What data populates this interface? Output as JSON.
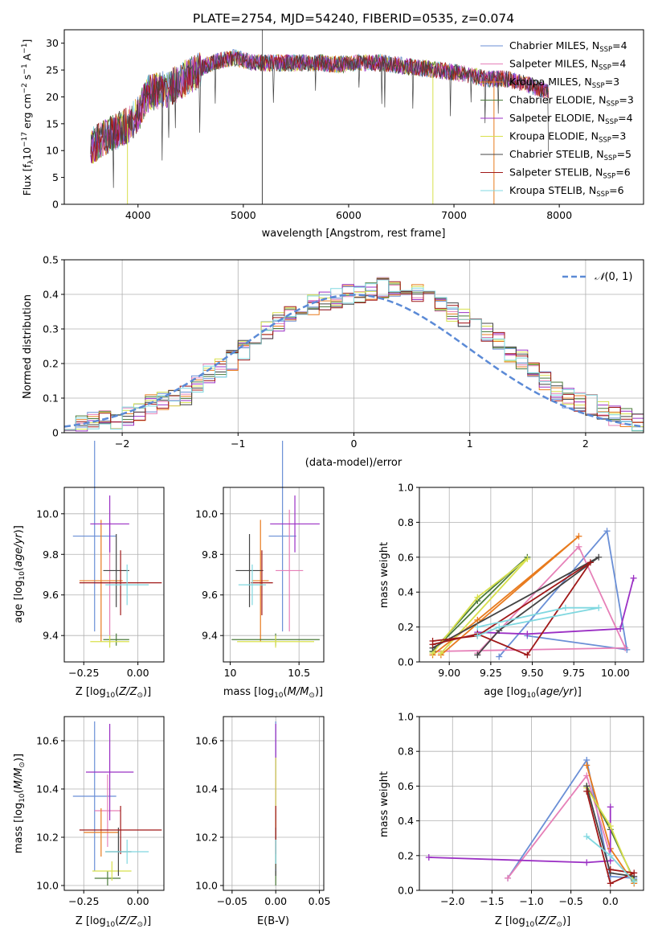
{
  "chart_data": [
    {
      "id": "spectrum",
      "type": "line",
      "title": "PLATE=2754, MJD=54240, FIBERID=0535, z=0.074",
      "xlabel": "wavelength [Angstrom, rest frame]",
      "ylabel": "Flux [f_λ10^-17 erg cm^-2 s^-1 A^-1]",
      "xlim": [
        3300,
        8800
      ],
      "ylim": [
        0,
        32.5
      ],
      "xticks": [
        4000,
        5000,
        6000,
        7000,
        8000
      ],
      "yticks": [
        0,
        5,
        10,
        15,
        20,
        25,
        30
      ],
      "grid": false,
      "legend_position": "top-right",
      "continuum": {
        "x": [
          3550,
          3700,
          3900,
          4000,
          4100,
          4300,
          4500,
          4700,
          4900,
          5100,
          5300,
          5500,
          5700,
          5900,
          6100,
          6300,
          6500,
          6700,
          6900,
          7100,
          7300,
          7500,
          7700,
          7900
        ],
        "y": [
          11,
          13,
          15,
          17,
          21,
          22,
          24.5,
          26.5,
          27.5,
          26.5,
          26.5,
          26.5,
          26.5,
          26.2,
          26.5,
          26.5,
          26,
          25.5,
          25,
          24.5,
          23.5,
          23.5,
          22.5,
          21
        ]
      },
      "series": [
        {
          "name": "Chabrier MILES, N_SSP=4",
          "color": "#6a8fd6"
        },
        {
          "name": "Salpeter MILES, N_SSP=4",
          "color": "#e680b8"
        },
        {
          "name": "Kroupa MILES, N_SSP=3",
          "color": "#e87b1e"
        },
        {
          "name": "Chabrier ELODIE, N_SSP=3",
          "color": "#4a7a3a"
        },
        {
          "name": "Salpeter ELODIE, N_SSP=4",
          "color": "#9b30c4"
        },
        {
          "name": "Kroupa ELODIE, N_SSP=3",
          "color": "#d8e04c"
        },
        {
          "name": "Chabrier STELIB, N_SSP=5",
          "color": "#444444"
        },
        {
          "name": "Salpeter STELIB, N_SSP=6",
          "color": "#a01818"
        },
        {
          "name": "Kroupa STELIB, N_SSP=6",
          "color": "#80d8e0"
        }
      ]
    },
    {
      "id": "residuals",
      "type": "line",
      "xlabel": "(data-model)/error",
      "ylabel": "Normed distribution",
      "xlim": [
        -2.5,
        2.5
      ],
      "ylim": [
        0,
        0.5
      ],
      "xticks": [
        -2,
        -1,
        0,
        1,
        2
      ],
      "yticks": [
        0.0,
        0.1,
        0.2,
        0.3,
        0.4,
        0.5
      ],
      "grid": true,
      "legend_position": "top-right",
      "legend": "N(0,1)",
      "gaussian_color": "#5b8ad6",
      "bin_width": 0.1,
      "hist_base": [
        0.02,
        0.02,
        0.03,
        0.04,
        0.04,
        0.05,
        0.06,
        0.08,
        0.09,
        0.1,
        0.11,
        0.14,
        0.17,
        0.19,
        0.21,
        0.24,
        0.28,
        0.3,
        0.32,
        0.34,
        0.36,
        0.37,
        0.38,
        0.39,
        0.4,
        0.4,
        0.41,
        0.42,
        0.41,
        0.4,
        0.4,
        0.39,
        0.37,
        0.35,
        0.33,
        0.31,
        0.29,
        0.26,
        0.23,
        0.21,
        0.18,
        0.15,
        0.12,
        0.1,
        0.09,
        0.08,
        0.06,
        0.05,
        0.04,
        0.03
      ]
    },
    {
      "id": "age-vs-Z",
      "type": "scatter",
      "xlabel": "Z [log10(Z/Z⊙)]",
      "ylabel": "age [log10(age/yr)]",
      "xlim": [
        -0.34,
        0.12
      ],
      "ylim": [
        9.27,
        10.13
      ],
      "xticks": [
        -0.25,
        0.0
      ],
      "xtick_labels": [
        "−0.25",
        "0.00"
      ],
      "yticks": [
        9.4,
        9.6,
        9.8,
        10.0
      ],
      "yticks_fmt": 1,
      "grid": true,
      "points": [
        {
          "x": -0.2,
          "y": 9.89,
          "xe": 0.1,
          "ye": 0.47,
          "color": "#6a8fd6"
        },
        {
          "x": -0.13,
          "y": 9.66,
          "xe": 0.07,
          "ye": 0.3,
          "color": "#e680b8"
        },
        {
          "x": -0.17,
          "y": 9.67,
          "xe": 0.1,
          "ye": 0.3,
          "color": "#e87b1e"
        },
        {
          "x": -0.1,
          "y": 9.38,
          "xe": 0.06,
          "ye": 0.03,
          "color": "#4a7a3a"
        },
        {
          "x": -0.13,
          "y": 9.95,
          "xe": 0.09,
          "ye": 0.14,
          "color": "#9b30c4"
        },
        {
          "x": -0.13,
          "y": 9.37,
          "xe": 0.09,
          "ye": 0.03,
          "color": "#d8e04c"
        },
        {
          "x": -0.1,
          "y": 9.72,
          "xe": 0.06,
          "ye": 0.18,
          "color": "#444444"
        },
        {
          "x": -0.08,
          "y": 9.66,
          "xe": 0.19,
          "ye": 0.16,
          "color": "#a01818"
        },
        {
          "x": -0.05,
          "y": 9.65,
          "xe": 0.1,
          "ye": 0.1,
          "color": "#80d8e0"
        }
      ]
    },
    {
      "id": "age-vs-mass",
      "type": "scatter",
      "xlabel": "mass [log10(M/M⊙)]",
      "ylabel": "",
      "xlim": [
        9.95,
        10.68
      ],
      "ylim": [
        9.27,
        10.13
      ],
      "xticks": [
        10.0,
        10.5
      ],
      "yticks": [
        9.4,
        9.6,
        9.8,
        10.0
      ],
      "yticks_fmt": 1,
      "grid": true,
      "points": [
        {
          "x": 10.38,
          "y": 9.89,
          "xe": 0.1,
          "ye": 0.47,
          "color": "#6a8fd6"
        },
        {
          "x": 10.43,
          "y": 9.72,
          "xe": 0.1,
          "ye": 0.3,
          "color": "#e680b8"
        },
        {
          "x": 10.22,
          "y": 9.67,
          "xe": 0.06,
          "ye": 0.3,
          "color": "#e87b1e"
        },
        {
          "x": 10.33,
          "y": 9.38,
          "xe": 0.32,
          "ye": 0.03,
          "color": "#4a7a3a"
        },
        {
          "x": 10.47,
          "y": 9.95,
          "xe": 0.18,
          "ye": 0.14,
          "color": "#9b30c4"
        },
        {
          "x": 10.33,
          "y": 9.37,
          "xe": 0.28,
          "ye": 0.03,
          "color": "#d8e04c"
        },
        {
          "x": 10.14,
          "y": 9.72,
          "xe": 0.1,
          "ye": 0.18,
          "color": "#444444"
        },
        {
          "x": 10.23,
          "y": 9.66,
          "xe": 0.08,
          "ye": 0.16,
          "color": "#a01818"
        },
        {
          "x": 10.16,
          "y": 9.65,
          "xe": 0.1,
          "ye": 0.1,
          "color": "#80d8e0"
        }
      ]
    },
    {
      "id": "weight-vs-age",
      "type": "line",
      "xlabel": "age [log10(age/yr)]",
      "ylabel": "mass weight",
      "xlim": [
        8.82,
        10.17
      ],
      "ylim": [
        0,
        1.0
      ],
      "xticks": [
        9.0,
        9.25,
        9.5,
        9.75,
        10.0
      ],
      "xtick_labels": [
        "9.00",
        "9.25",
        "9.50",
        "9.75",
        "10.00"
      ],
      "yticks": [
        0.0,
        0.2,
        0.4,
        0.6,
        0.8,
        1.0
      ],
      "yticks_fmt": 1,
      "grid": true,
      "series": [
        {
          "color": "#6a8fd6",
          "x": [
            9.3,
            9.95,
            10.07,
            9.47
          ],
          "y": [
            0.03,
            0.75,
            0.07,
            0.15
          ]
        },
        {
          "color": "#e680b8",
          "x": [
            9.17,
            9.78,
            10.06,
            8.9
          ],
          "y": [
            0.05,
            0.66,
            0.08,
            0.06
          ]
        },
        {
          "color": "#e87b1e",
          "x": [
            8.9,
            9.17,
            9.78,
            8.95
          ],
          "y": [
            0.04,
            0.24,
            0.72,
            0.04
          ]
        },
        {
          "color": "#4a7a3a",
          "x": [
            8.9,
            9.17,
            9.47,
            8.9
          ],
          "y": [
            0.06,
            0.35,
            0.6,
            0.06
          ]
        },
        {
          "color": "#9b30c4",
          "x": [
            9.17,
            9.47,
            10.03,
            10.11
          ],
          "y": [
            0.17,
            0.16,
            0.19,
            0.48
          ]
        },
        {
          "color": "#d8e04c",
          "x": [
            8.9,
            9.17,
            9.47,
            8.95
          ],
          "y": [
            0.05,
            0.37,
            0.59,
            0.05
          ]
        },
        {
          "color": "#444444",
          "x": [
            9.17,
            9.3,
            9.9,
            8.9
          ],
          "y": [
            0.04,
            0.18,
            0.6,
            0.08
          ]
        },
        {
          "color": "#a01818",
          "x": [
            8.9,
            9.17,
            9.47,
            9.85,
            9.17,
            8.9
          ],
          "y": [
            0.1,
            0.16,
            0.04,
            0.57,
            0.15,
            0.12
          ]
        },
        {
          "color": "#80d8e0",
          "x": [
            9.17,
            9.7,
            9.9,
            9.3,
            9.17
          ],
          "y": [
            0.2,
            0.31,
            0.31,
            0.2,
            0.15
          ]
        }
      ]
    },
    {
      "id": "mass-vs-Z",
      "type": "scatter",
      "xlabel": "Z [log10(Z/Z⊙)]",
      "ylabel": "mass [log10(M/M⊙)]",
      "xlim": [
        -0.34,
        0.12
      ],
      "ylim": [
        9.98,
        10.7
      ],
      "xticks": [
        -0.25,
        0.0
      ],
      "xtick_labels": [
        "−0.25",
        "0.00"
      ],
      "yticks": [
        10.0,
        10.2,
        10.4,
        10.6
      ],
      "yticks_fmt": 1,
      "grid": true,
      "points": [
        {
          "x": -0.2,
          "y": 10.37,
          "xe": 0.1,
          "ye": 0.31,
          "color": "#6a8fd6"
        },
        {
          "x": -0.14,
          "y": 10.31,
          "xe": 0.06,
          "ye": 0.15,
          "color": "#e680b8"
        },
        {
          "x": -0.17,
          "y": 10.22,
          "xe": 0.08,
          "ye": 0.1,
          "color": "#e87b1e"
        },
        {
          "x": -0.14,
          "y": 10.03,
          "xe": 0.06,
          "ye": 0.03,
          "color": "#4a7a3a"
        },
        {
          "x": -0.13,
          "y": 10.47,
          "xe": 0.11,
          "ye": 0.2,
          "color": "#9b30c4"
        },
        {
          "x": -0.12,
          "y": 10.06,
          "xe": 0.09,
          "ye": 0.04,
          "color": "#d8e04c"
        },
        {
          "x": -0.09,
          "y": 10.14,
          "xe": 0.06,
          "ye": 0.1,
          "color": "#444444"
        },
        {
          "x": -0.08,
          "y": 10.23,
          "xe": 0.19,
          "ye": 0.1,
          "color": "#a01818"
        },
        {
          "x": -0.05,
          "y": 10.14,
          "xe": 0.1,
          "ye": 0.05,
          "color": "#80d8e0"
        }
      ]
    },
    {
      "id": "mass-vs-ebv",
      "type": "scatter",
      "xlabel": "E(B-V)",
      "ylabel": "",
      "xlim": [
        -0.06,
        0.055
      ],
      "ylim": [
        9.98,
        10.7
      ],
      "xticks": [
        -0.05,
        0.0,
        0.05
      ],
      "xtick_labels": [
        "−0.05",
        "0.00",
        "0.05"
      ],
      "yticks": [
        10.0,
        10.2,
        10.4,
        10.6
      ],
      "yticks_fmt": 1,
      "grid": true,
      "points": [
        {
          "x": 0.0,
          "y": 10.37,
          "xe": 0,
          "ye": 0.31,
          "color": "#6a8fd6"
        },
        {
          "x": 0.0,
          "y": 10.31,
          "xe": 0,
          "ye": 0.15,
          "color": "#e680b8"
        },
        {
          "x": 0.0,
          "y": 10.22,
          "xe": 0,
          "ye": 0.1,
          "color": "#e87b1e"
        },
        {
          "x": 0.0,
          "y": 10.03,
          "xe": 0,
          "ye": 0.03,
          "color": "#4a7a3a"
        },
        {
          "x": 0.0,
          "y": 10.47,
          "xe": 0,
          "ye": 0.2,
          "color": "#9b30c4"
        },
        {
          "x": 0.0,
          "y": 10.3,
          "xe": 0,
          "ye": 0.23,
          "color": "#d8e04c"
        },
        {
          "x": 0.0,
          "y": 10.14,
          "xe": 0,
          "ye": 0.1,
          "color": "#444444"
        },
        {
          "x": 0.0,
          "y": 10.23,
          "xe": 0,
          "ye": 0.1,
          "color": "#a01818"
        },
        {
          "x": 0.0,
          "y": 10.14,
          "xe": 0,
          "ye": 0.05,
          "color": "#80d8e0"
        }
      ]
    },
    {
      "id": "weight-vs-Z",
      "type": "line",
      "xlabel": "Z [log10(Z/Z⊙)]",
      "ylabel": "mass weight",
      "xlim": [
        -2.42,
        0.42
      ],
      "ylim": [
        0,
        1.0
      ],
      "xticks": [
        -2.0,
        -1.5,
        -1.0,
        -0.5,
        0.0
      ],
      "xtick_labels": [
        "−2.0",
        "−1.5",
        "−1.0",
        "−0.5",
        "0.0"
      ],
      "yticks": [
        0.0,
        0.2,
        0.4,
        0.6,
        0.8,
        1.0
      ],
      "yticks_fmt": 1,
      "grid": true,
      "series": [
        {
          "color": "#6a8fd6",
          "x": [
            -1.3,
            -0.3,
            0.0,
            0.3
          ],
          "y": [
            0.07,
            0.75,
            0.08,
            0.07
          ]
        },
        {
          "color": "#e680b8",
          "x": [
            -1.3,
            -0.3,
            0.0,
            0.3
          ],
          "y": [
            0.07,
            0.66,
            0.2,
            0.05
          ]
        },
        {
          "color": "#e87b1e",
          "x": [
            -0.3,
            0.0,
            0.3
          ],
          "y": [
            0.72,
            0.24,
            0.04
          ]
        },
        {
          "color": "#4a7a3a",
          "x": [
            -0.3,
            0.0,
            0.3
          ],
          "y": [
            0.6,
            0.35,
            0.06
          ]
        },
        {
          "color": "#9b30c4",
          "x": [
            -2.3,
            -0.3,
            0.0,
            0.0
          ],
          "y": [
            0.19,
            0.16,
            0.17,
            0.48
          ]
        },
        {
          "color": "#d8e04c",
          "x": [
            -0.3,
            0.0,
            0.3
          ],
          "y": [
            0.59,
            0.37,
            0.05
          ]
        },
        {
          "color": "#444444",
          "x": [
            -0.3,
            0.0,
            0.3
          ],
          "y": [
            0.6,
            0.1,
            0.08
          ]
        },
        {
          "color": "#a01818",
          "x": [
            -0.3,
            0.0,
            0.3,
            0.0
          ],
          "y": [
            0.57,
            0.04,
            0.1,
            0.12
          ]
        },
        {
          "color": "#80d8e0",
          "x": [
            -0.3,
            0.0,
            0.3
          ],
          "y": [
            0.31,
            0.2,
            0.05
          ]
        }
      ]
    }
  ]
}
